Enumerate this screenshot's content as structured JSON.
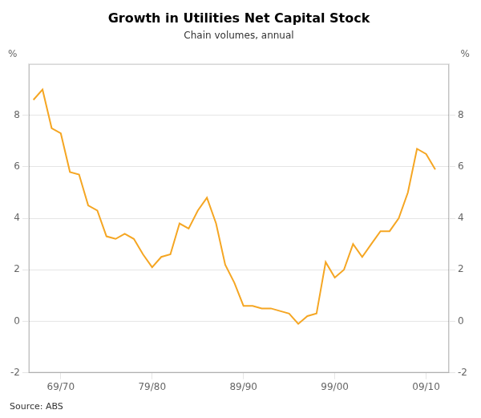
{
  "chart_data": {
    "type": "line",
    "title": "Growth in Utilities Net Capital Stock",
    "subtitle": "Chain volumes, annual",
    "annotations": [
      "Source: ABS"
    ],
    "y_label": "%",
    "y2_label": "%",
    "x": [
      1966,
      1967,
      1968,
      1969,
      1970,
      1971,
      1972,
      1973,
      1974,
      1975,
      1976,
      1977,
      1978,
      1979,
      1980,
      1981,
      1982,
      1983,
      1984,
      1985,
      1986,
      1987,
      1988,
      1989,
      1990,
      1991,
      1992,
      1993,
      1994,
      1995,
      1996,
      1997,
      1998,
      1999,
      2000,
      2001,
      2002,
      2003,
      2004,
      2005,
      2006,
      2007,
      2008,
      2009,
      2010
    ],
    "values": [
      8.6,
      9.0,
      7.5,
      7.3,
      5.8,
      5.7,
      4.5,
      4.3,
      3.3,
      3.2,
      3.4,
      3.2,
      2.6,
      2.1,
      2.5,
      2.6,
      3.8,
      3.6,
      4.3,
      4.8,
      3.8,
      2.2,
      1.5,
      0.6,
      0.6,
      0.5,
      0.5,
      0.4,
      0.3,
      -0.1,
      0.2,
      0.3,
      2.3,
      1.7,
      2.0,
      3.0,
      2.5,
      3.0,
      3.5,
      3.5,
      4.0,
      5.0,
      6.7,
      6.5,
      5.9
    ],
    "color": "#F5A623",
    "xlim": [
      1965.5,
      2011.5
    ],
    "xticks": [
      {
        "value": 1969,
        "label": "69/70"
      },
      {
        "value": 1979,
        "label": "79/80"
      },
      {
        "value": 1989,
        "label": "89/90"
      },
      {
        "value": 1999,
        "label": "99/00"
      },
      {
        "value": 2009,
        "label": "09/10"
      }
    ],
    "ylim": [
      -2,
      10
    ],
    "yticks": [
      -2,
      0,
      2,
      4,
      6,
      8
    ],
    "y2lim": [
      -2,
      10
    ],
    "y2ticks": [
      -2,
      0,
      2,
      4,
      6,
      8
    ],
    "grid": true
  }
}
